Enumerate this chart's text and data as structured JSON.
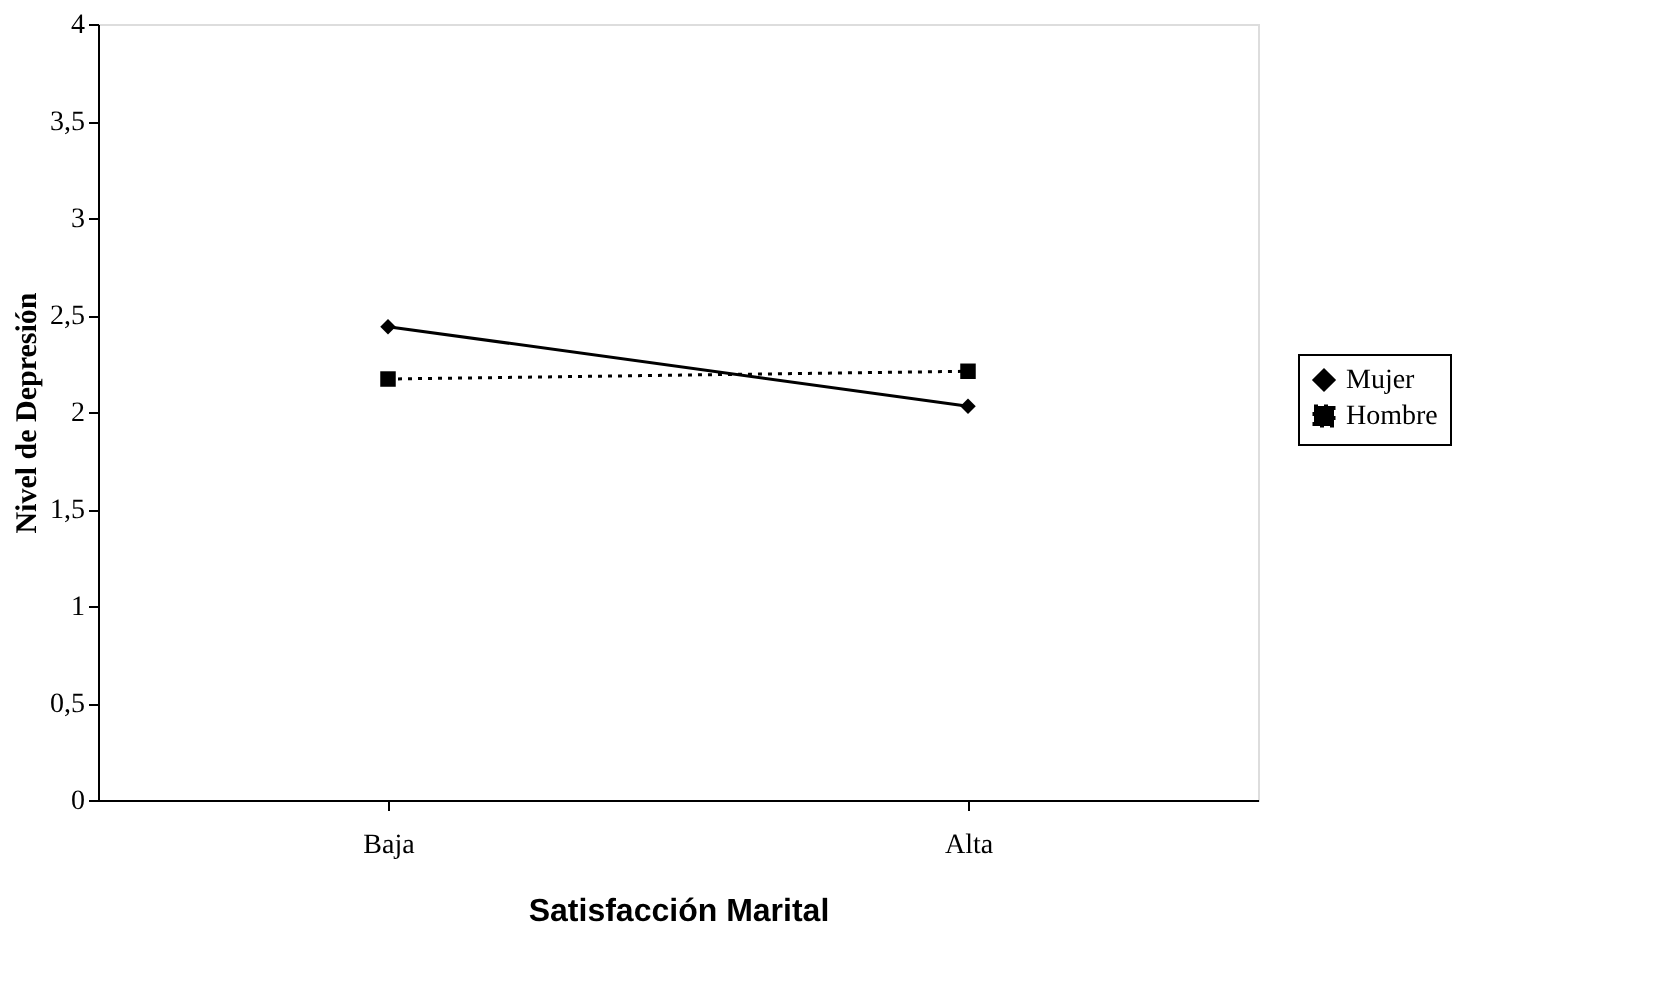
{
  "chart_data": {
    "type": "line",
    "xlabel": "Satisfacción Marital",
    "ylabel": "Nivel de Depresión",
    "categories": [
      "Baja",
      "Alta"
    ],
    "series": [
      {
        "name": "Mujer",
        "color": "#000000",
        "values": [
          2.44,
          2.03
        ],
        "marker": "diamond",
        "line_style": "solid"
      },
      {
        "name": "Hombre",
        "color": "#000000",
        "values": [
          2.17,
          2.21
        ],
        "marker": "square",
        "line_style": "dotted"
      }
    ],
    "ylim": [
      0,
      4
    ],
    "yticks": [
      0,
      {
        "value": 0.5,
        "label": "0,5"
      },
      1,
      {
        "value": 1.5,
        "label": "1,5"
      },
      2,
      {
        "value": 2.5,
        "label": "2,5"
      },
      3,
      {
        "value": 3.5,
        "label": "3,5"
      },
      4
    ],
    "grid": false,
    "legend": "right"
  }
}
